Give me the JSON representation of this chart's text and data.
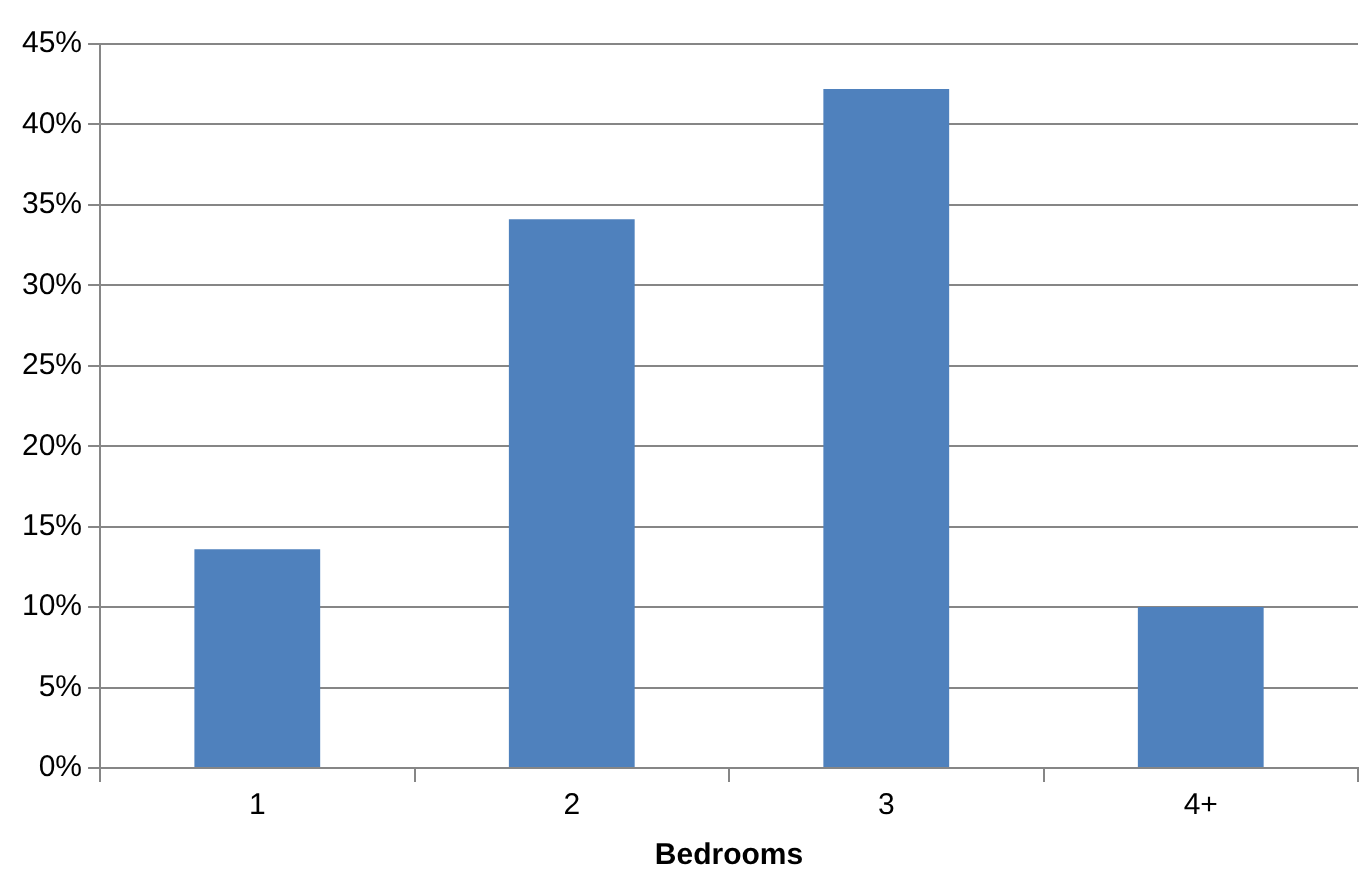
{
  "chart_data": {
    "type": "bar",
    "xlabel": "Bedrooms",
    "categories": [
      "1",
      "2",
      "3",
      "4+"
    ],
    "values": [
      13.6,
      34.1,
      42.2,
      10.0
    ],
    "color": "#4f81bd",
    "ylim": [
      0,
      45
    ],
    "yticks": [
      {
        "value": 0,
        "label": "0%"
      },
      {
        "value": 5,
        "label": "5%"
      },
      {
        "value": 10,
        "label": "10%"
      },
      {
        "value": 15,
        "label": "15%"
      },
      {
        "value": 20,
        "label": "20%"
      },
      {
        "value": 25,
        "label": "25%"
      },
      {
        "value": 30,
        "label": "30%"
      },
      {
        "value": 35,
        "label": "35%"
      },
      {
        "value": 40,
        "label": "40%"
      },
      {
        "value": 45,
        "label": "45%"
      }
    ],
    "grid": "y",
    "legend": false
  }
}
